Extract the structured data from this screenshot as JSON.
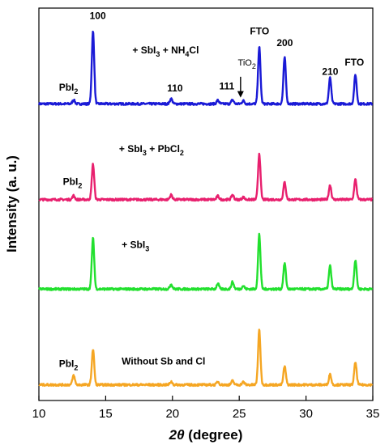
{
  "chart_data": {
    "type": "line",
    "xlabel_italic": "2θ",
    "xlabel_rest": " (degree)",
    "ylabel": "Intensity (a. u.)",
    "xlim": [
      10,
      35
    ],
    "xticks": [
      10,
      15,
      20,
      25,
      30,
      35
    ],
    "ylim": [
      0,
      100
    ],
    "yticks_shown": false,
    "colors": {
      "Without Sb and Cl": "#f5a623",
      "+ SbI3": "#22e02e",
      "+ SbI3 + PbCl2": "#e8206e",
      "+ SbI3 + NH4Cl": "#1a1ad6"
    },
    "series": [
      {
        "name": "+ SbI3 + NH4Cl",
        "baseline": 75.6,
        "peaks": [
          {
            "x": 12.6,
            "h": 1.0
          },
          {
            "x": 14.05,
            "h": 18.4
          },
          {
            "x": 19.9,
            "h": 1.3
          },
          {
            "x": 23.4,
            "h": 0.9
          },
          {
            "x": 24.5,
            "h": 1.0
          },
          {
            "x": 25.3,
            "h": 0.8
          },
          {
            "x": 26.5,
            "h": 14.6
          },
          {
            "x": 28.4,
            "h": 11.8
          },
          {
            "x": 31.8,
            "h": 6.6
          },
          {
            "x": 33.7,
            "h": 7.4
          }
        ]
      },
      {
        "name": "+ SbI3 + PbCl2",
        "baseline": 51.2,
        "peaks": [
          {
            "x": 12.6,
            "h": 1.0
          },
          {
            "x": 14.05,
            "h": 9.0
          },
          {
            "x": 19.9,
            "h": 1.2
          },
          {
            "x": 23.4,
            "h": 0.9
          },
          {
            "x": 24.5,
            "h": 1.2
          },
          {
            "x": 25.3,
            "h": 0.6
          },
          {
            "x": 26.5,
            "h": 11.8
          },
          {
            "x": 28.4,
            "h": 4.4
          },
          {
            "x": 31.8,
            "h": 3.7
          },
          {
            "x": 33.7,
            "h": 5.1
          }
        ]
      },
      {
        "name": "+ SbI3",
        "baseline": 28.4,
        "peaks": [
          {
            "x": 14.05,
            "h": 12.9
          },
          {
            "x": 19.9,
            "h": 1.2
          },
          {
            "x": 23.4,
            "h": 1.4
          },
          {
            "x": 24.5,
            "h": 1.8
          },
          {
            "x": 25.3,
            "h": 0.8
          },
          {
            "x": 26.5,
            "h": 14.0
          },
          {
            "x": 28.4,
            "h": 6.6
          },
          {
            "x": 31.8,
            "h": 5.9
          },
          {
            "x": 33.7,
            "h": 7.4
          }
        ]
      },
      {
        "name": "Without Sb and Cl",
        "baseline": 4.0,
        "peaks": [
          {
            "x": 12.6,
            "h": 2.4
          },
          {
            "x": 14.05,
            "h": 9.0
          },
          {
            "x": 19.9,
            "h": 0.8
          },
          {
            "x": 23.4,
            "h": 0.8
          },
          {
            "x": 24.5,
            "h": 1.0
          },
          {
            "x": 25.3,
            "h": 0.7
          },
          {
            "x": 26.5,
            "h": 14.0
          },
          {
            "x": 28.4,
            "h": 4.7
          },
          {
            "x": 31.8,
            "h": 2.7
          },
          {
            "x": 33.7,
            "h": 5.7
          }
        ]
      }
    ],
    "annotations": [
      {
        "id": "blue-label",
        "text": "+ SbI",
        "sub": "3",
        "after": " + NH",
        "sub2": "4",
        "after2": "Cl",
        "x": 17.0,
        "y": 88.5
      },
      {
        "id": "blue-pbi2",
        "text": "PbI",
        "sub": "2",
        "x": 11.5,
        "y": 79.0
      },
      {
        "id": "blue-100",
        "text": "100",
        "x": 13.8,
        "y": 97.2
      },
      {
        "id": "blue-110",
        "text": "110",
        "x": 19.6,
        "y": 78.8
      },
      {
        "id": "blue-111",
        "text": "111",
        "x": 23.5,
        "y": 79.3
      },
      {
        "id": "blue-fto1",
        "text": "FTO",
        "x": 25.8,
        "y": 93.3
      },
      {
        "id": "blue-200",
        "text": "200",
        "x": 27.8,
        "y": 90.3
      },
      {
        "id": "blue-210",
        "text": "210",
        "x": 31.2,
        "y": 83.0
      },
      {
        "id": "blue-fto2",
        "text": "FTO",
        "x": 32.9,
        "y": 85.4
      },
      {
        "id": "red-label",
        "text": "+ SbI",
        "sub": "3",
        "after": " + PbCl",
        "sub2": "2",
        "x": 16.0,
        "y": 63.3
      },
      {
        "id": "red-pbi2",
        "text": "PbI",
        "sub": "2",
        "x": 11.8,
        "y": 55.0
      },
      {
        "id": "green-label",
        "text": "+ SbI",
        "sub": "3",
        "x": 16.2,
        "y": 38.9
      },
      {
        "id": "orange-label",
        "text": "Without Sb and Cl",
        "x": 16.2,
        "y": 9.2
      },
      {
        "id": "orange-pbi2",
        "text": "PbI",
        "sub": "2",
        "x": 11.5,
        "y": 8.6
      }
    ],
    "tio2_label": {
      "text": "TiO",
      "sub": "2",
      "x": 24.9,
      "y": 85.4
    },
    "tio2_arrow": {
      "x": 25.1,
      "y_from": 82.5,
      "y_to": 77.2
    }
  }
}
